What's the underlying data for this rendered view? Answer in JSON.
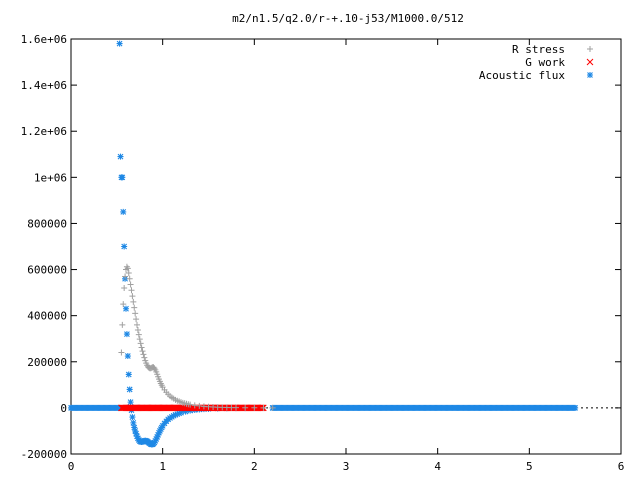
{
  "chart_data": {
    "type": "scatter",
    "title": "m2/n1.5/q2.0/r-+.10-j53/M1000.0/512",
    "xlabel": "",
    "ylabel": "",
    "xlim": [
      0,
      6
    ],
    "ylim": [
      -200000,
      1600000
    ],
    "x_ticks": [
      0,
      1,
      2,
      3,
      4,
      5,
      6
    ],
    "y_ticks": [
      -200000,
      0,
      200000,
      400000,
      600000,
      800000,
      1000000,
      1200000,
      1400000,
      1600000
    ],
    "x_tick_labels": [
      "0",
      "1",
      "2",
      "3",
      "4",
      "5",
      "6"
    ],
    "y_tick_labels": [
      "-200000",
      "0",
      "200000",
      "400000",
      "600000",
      "800000",
      "1e+06",
      "1.2e+06",
      "1.4e+06",
      "1.6e+06"
    ],
    "grid": false,
    "legend_position": "top-right",
    "series": [
      {
        "name": "R stress",
        "marker": "plus",
        "color": "#a0a0a0",
        "points": [
          [
            0.55,
            240000
          ],
          [
            0.56,
            360000
          ],
          [
            0.57,
            450000
          ],
          [
            0.58,
            520000
          ],
          [
            0.59,
            570000
          ],
          [
            0.6,
            600000
          ],
          [
            0.61,
            612000
          ],
          [
            0.62,
            605000
          ],
          [
            0.63,
            585000
          ],
          [
            0.64,
            560000
          ],
          [
            0.65,
            535000
          ],
          [
            0.66,
            510000
          ],
          [
            0.67,
            485000
          ],
          [
            0.68,
            460000
          ],
          [
            0.69,
            435000
          ],
          [
            0.7,
            410000
          ],
          [
            0.71,
            385000
          ],
          [
            0.72,
            360000
          ],
          [
            0.73,
            338000
          ],
          [
            0.74,
            318000
          ],
          [
            0.75,
            298000
          ],
          [
            0.76,
            280000
          ],
          [
            0.77,
            262000
          ],
          [
            0.78,
            246000
          ],
          [
            0.79,
            232000
          ],
          [
            0.8,
            218000
          ],
          [
            0.81,
            205000
          ],
          [
            0.82,
            194000
          ],
          [
            0.83,
            185000
          ],
          [
            0.84,
            178000
          ],
          [
            0.85,
            174000
          ],
          [
            0.86,
            172000
          ],
          [
            0.87,
            172000
          ],
          [
            0.88,
            174000
          ],
          [
            0.89,
            176000
          ],
          [
            0.9,
            176000
          ],
          [
            0.91,
            172000
          ],
          [
            0.92,
            165000
          ],
          [
            0.93,
            156000
          ],
          [
            0.94,
            146000
          ],
          [
            0.95,
            135000
          ],
          [
            0.96,
            125000
          ],
          [
            0.97,
            115000
          ],
          [
            0.98,
            106000
          ],
          [
            0.99,
            98000
          ],
          [
            1.0,
            90000
          ],
          [
            1.02,
            78000
          ],
          [
            1.04,
            68000
          ],
          [
            1.06,
            59000
          ],
          [
            1.08,
            51000
          ],
          [
            1.1,
            45000
          ],
          [
            1.12,
            40000
          ],
          [
            1.14,
            35000
          ],
          [
            1.16,
            31000
          ],
          [
            1.18,
            28000
          ],
          [
            1.2,
            25000
          ],
          [
            1.22,
            22000
          ],
          [
            1.24,
            20000
          ],
          [
            1.26,
            18000
          ],
          [
            1.28,
            16000
          ],
          [
            1.3,
            14000
          ],
          [
            1.35,
            11000
          ],
          [
            1.4,
            8500
          ],
          [
            1.45,
            6500
          ],
          [
            1.5,
            5000
          ],
          [
            1.55,
            3800
          ],
          [
            1.6,
            3000
          ],
          [
            1.65,
            2300
          ],
          [
            1.7,
            1800
          ],
          [
            1.75,
            1400
          ],
          [
            1.8,
            1100
          ],
          [
            1.9,
            800
          ],
          [
            2.0,
            500
          ],
          [
            2.1,
            300
          ],
          [
            2.2,
            200
          ]
        ]
      },
      {
        "name": "G work",
        "marker": "cross",
        "color": "#ff0000",
        "x_range": [
          0.55,
          2.1
        ],
        "y_value": 0
      },
      {
        "name": "Acoustic flux",
        "marker": "star",
        "color": "#1e88e5",
        "points": [
          [
            0.53,
            1580000
          ],
          [
            0.54,
            1090000
          ],
          [
            0.55,
            1000000
          ],
          [
            0.56,
            1000000
          ],
          [
            0.57,
            850000
          ],
          [
            0.58,
            700000
          ],
          [
            0.59,
            560000
          ],
          [
            0.6,
            430000
          ],
          [
            0.61,
            320000
          ],
          [
            0.62,
            225000
          ],
          [
            0.63,
            145000
          ],
          [
            0.64,
            80000
          ],
          [
            0.65,
            25000
          ],
          [
            0.66,
            -10000
          ],
          [
            0.67,
            -40000
          ],
          [
            0.68,
            -65000
          ],
          [
            0.69,
            -85000
          ],
          [
            0.7,
            -100000
          ],
          [
            0.71,
            -112000
          ],
          [
            0.72,
            -123000
          ],
          [
            0.73,
            -132000
          ],
          [
            0.74,
            -139000
          ],
          [
            0.75,
            -144000
          ],
          [
            0.76,
            -147000
          ],
          [
            0.77,
            -148000
          ],
          [
            0.78,
            -147000
          ],
          [
            0.79,
            -145000
          ],
          [
            0.8,
            -143000
          ],
          [
            0.81,
            -142000
          ],
          [
            0.82,
            -143000
          ],
          [
            0.83,
            -145000
          ],
          [
            0.84,
            -148000
          ],
          [
            0.85,
            -151000
          ],
          [
            0.86,
            -154000
          ],
          [
            0.87,
            -157000
          ],
          [
            0.88,
            -159000
          ],
          [
            0.89,
            -158000
          ],
          [
            0.9,
            -155000
          ],
          [
            0.91,
            -150000
          ],
          [
            0.92,
            -143000
          ],
          [
            0.93,
            -135000
          ],
          [
            0.94,
            -126000
          ],
          [
            0.95,
            -117000
          ],
          [
            0.96,
            -108000
          ],
          [
            0.97,
            -100000
          ],
          [
            0.98,
            -92000
          ],
          [
            0.99,
            -85000
          ],
          [
            1.0,
            -78000
          ],
          [
            1.02,
            -67000
          ],
          [
            1.04,
            -58000
          ],
          [
            1.06,
            -50000
          ],
          [
            1.08,
            -44000
          ],
          [
            1.1,
            -39000
          ],
          [
            1.12,
            -34000
          ],
          [
            1.14,
            -30000
          ],
          [
            1.16,
            -27000
          ],
          [
            1.18,
            -24000
          ],
          [
            1.2,
            -21000
          ],
          [
            1.25,
            -16000
          ],
          [
            1.3,
            -12000
          ],
          [
            1.35,
            -9000
          ],
          [
            1.4,
            -7000
          ],
          [
            1.45,
            -5500
          ],
          [
            1.5,
            -4200
          ],
          [
            1.6,
            -2800
          ],
          [
            1.7,
            -1800
          ],
          [
            1.8,
            -1200
          ],
          [
            1.9,
            -800
          ],
          [
            2.0,
            -500
          ],
          [
            2.2,
            -250
          ]
        ],
        "flat_ranges": [
          [
            0.0,
            0.53
          ],
          [
            2.2,
            5.5
          ]
        ],
        "flat_value": 0
      }
    ]
  }
}
